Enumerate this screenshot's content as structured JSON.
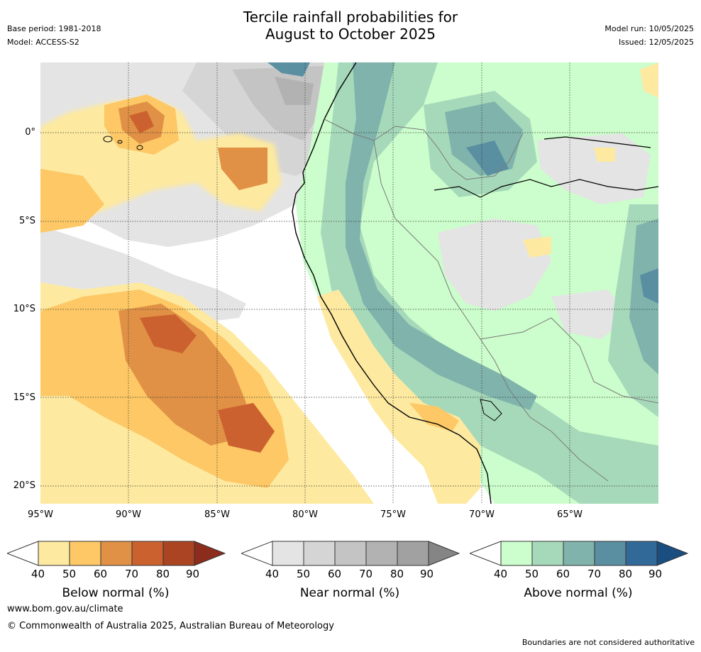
{
  "title": {
    "line1": "Tercile rainfall probabilities for",
    "line2": "August to October 2025"
  },
  "meta_left": {
    "base_period": "Base period: 1981-2018",
    "model": "Model: ACCESS-S2"
  },
  "meta_right": {
    "model_run": "Model run: 10/05/2025",
    "issued": "Issued: 12/05/2025"
  },
  "map": {
    "lon_range": [
      -95,
      -60
    ],
    "lat_range": [
      -21,
      4
    ],
    "lat_ticks": [
      "0°",
      "5°S",
      "10°S",
      "15°S",
      "20°S"
    ],
    "lon_ticks": [
      "95°W",
      "90°W",
      "85°W",
      "80°W",
      "75°W",
      "70°W",
      "65°W"
    ],
    "gridlines": true
  },
  "legends": [
    {
      "label": "Below normal (%)",
      "ticks": [
        "40",
        "50",
        "60",
        "70",
        "80",
        "90"
      ],
      "colors": [
        "#fde9a0",
        "#fdc865",
        "#e09145",
        "#cc6130",
        "#aa4423",
        "#8b2c1d"
      ]
    },
    {
      "label": "Near normal (%)",
      "ticks": [
        "40",
        "50",
        "60",
        "70",
        "80",
        "90"
      ],
      "colors": [
        "#e4e4e4",
        "#d5d5d5",
        "#c4c4c4",
        "#b2b2b2",
        "#a1a1a1",
        "#858585"
      ]
    },
    {
      "label": "Above normal (%)",
      "ticks": [
        "40",
        "50",
        "60",
        "70",
        "80",
        "90"
      ],
      "colors": [
        "#ccfdcc",
        "#a6d9ba",
        "#7fb3ab",
        "#5a8fa2",
        "#316999",
        "#1a4d80"
      ]
    }
  ],
  "footer": {
    "url": "www.bom.gov.au/climate",
    "copyright": "© Commonwealth of Australia 2025, Australian Bureau of Meteorology",
    "note": "Boundaries are not considered authoritative"
  }
}
